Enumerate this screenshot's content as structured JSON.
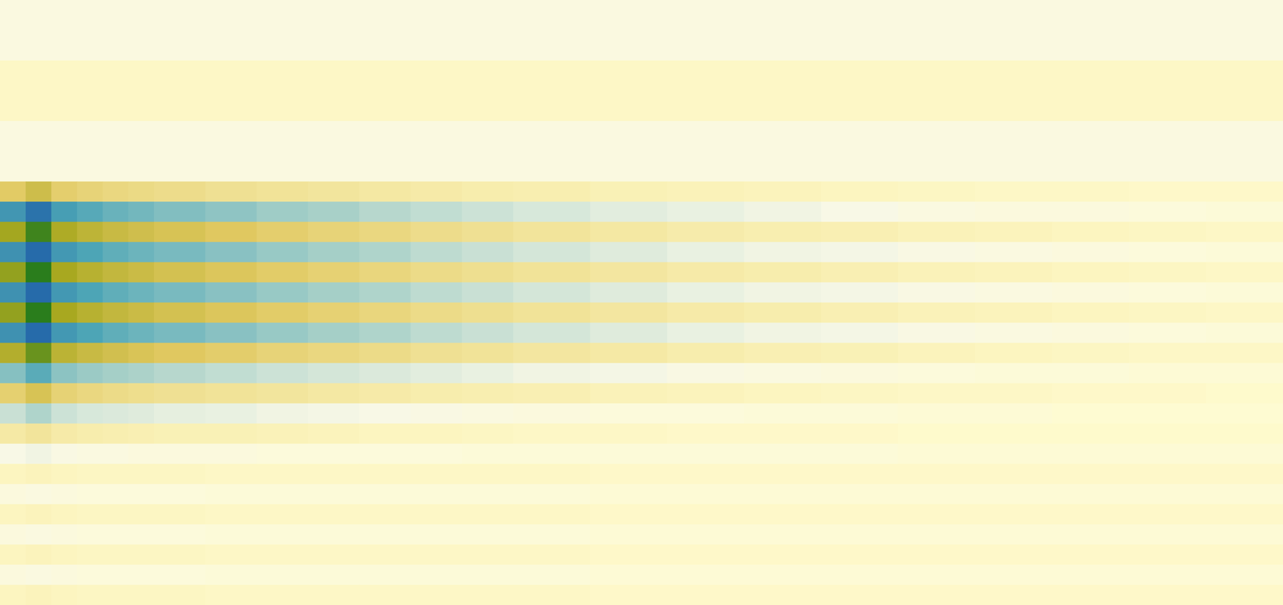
{
  "chart_data": {
    "type": "heatmap",
    "tick_labels": false,
    "xlim": [
      0,
      50
    ],
    "ylim": [
      0,
      30
    ],
    "zlim": [
      -1,
      1
    ],
    "x_edges": [
      0,
      1,
      2,
      3,
      4,
      5,
      6,
      8,
      10,
      12,
      14,
      16,
      18,
      20,
      23,
      26,
      29,
      32,
      35,
      38,
      41,
      44,
      47,
      50
    ],
    "cells": [
      [
        -0.06,
        -0.06,
        -0.06,
        -0.06,
        -0.06,
        -0.06,
        -0.06,
        -0.06,
        -0.06,
        -0.06,
        -0.06,
        -0.06,
        -0.06,
        -0.06,
        -0.06,
        -0.06,
        -0.06,
        -0.06,
        -0.06,
        -0.06,
        -0.06,
        -0.06,
        -0.06
      ],
      [
        -0.06,
        -0.06,
        -0.06,
        -0.06,
        -0.06,
        -0.06,
        -0.06,
        -0.06,
        -0.06,
        -0.06,
        -0.06,
        -0.06,
        -0.06,
        -0.06,
        -0.06,
        -0.06,
        -0.06,
        -0.06,
        -0.06,
        -0.06,
        -0.06,
        -0.06,
        -0.06
      ],
      [
        -0.06,
        -0.06,
        -0.06,
        -0.06,
        -0.06,
        -0.06,
        -0.06,
        -0.06,
        -0.06,
        -0.06,
        -0.06,
        -0.06,
        -0.06,
        -0.06,
        -0.06,
        -0.06,
        -0.06,
        -0.06,
        -0.06,
        -0.06,
        -0.06,
        -0.06,
        -0.06
      ],
      [
        0.03,
        0.03,
        0.03,
        0.03,
        0.03,
        0.03,
        0.03,
        0.03,
        0.03,
        0.03,
        0.03,
        0.03,
        0.03,
        0.03,
        0.03,
        0.03,
        0.03,
        0.03,
        0.03,
        0.03,
        0.03,
        0.03,
        0.03
      ],
      [
        0.03,
        0.03,
        0.03,
        0.03,
        0.03,
        0.03,
        0.03,
        0.03,
        0.03,
        0.03,
        0.03,
        0.03,
        0.03,
        0.03,
        0.03,
        0.03,
        0.03,
        0.03,
        0.03,
        0.03,
        0.03,
        0.03,
        0.03
      ],
      [
        0.03,
        0.03,
        0.03,
        0.03,
        0.03,
        0.03,
        0.03,
        0.03,
        0.03,
        0.03,
        0.03,
        0.03,
        0.03,
        0.03,
        0.03,
        0.03,
        0.03,
        0.03,
        0.03,
        0.03,
        0.03,
        0.03,
        0.03
      ],
      [
        -0.06,
        -0.06,
        -0.06,
        -0.06,
        -0.06,
        -0.06,
        -0.06,
        -0.06,
        -0.06,
        -0.06,
        -0.06,
        -0.06,
        -0.06,
        -0.06,
        -0.06,
        -0.06,
        -0.06,
        -0.06,
        -0.06,
        -0.06,
        -0.06,
        -0.06,
        -0.06
      ],
      [
        -0.06,
        -0.06,
        -0.06,
        -0.06,
        -0.06,
        -0.06,
        -0.06,
        -0.06,
        -0.06,
        -0.06,
        -0.06,
        -0.06,
        -0.06,
        -0.06,
        -0.06,
        -0.06,
        -0.06,
        -0.06,
        -0.06,
        -0.06,
        -0.06,
        -0.06,
        -0.06
      ],
      [
        -0.06,
        -0.06,
        -0.06,
        -0.06,
        -0.06,
        -0.06,
        -0.06,
        -0.06,
        -0.06,
        -0.06,
        -0.06,
        -0.06,
        -0.06,
        -0.06,
        -0.06,
        -0.06,
        -0.06,
        -0.06,
        -0.06,
        -0.06,
        -0.06,
        -0.06,
        -0.06
      ],
      [
        0.38,
        0.5,
        0.35,
        0.31,
        0.28,
        0.26,
        0.24,
        0.21,
        0.19,
        0.17,
        0.15,
        0.13,
        0.11,
        0.1,
        0.08,
        0.07,
        0.06,
        0.05,
        0.04,
        0.03,
        0.03,
        0.02,
        0.02
      ],
      [
        -0.68,
        -0.9,
        -0.63,
        -0.56,
        -0.5,
        -0.47,
        -0.42,
        -0.38,
        -0.33,
        -0.3,
        -0.26,
        -0.23,
        -0.2,
        -0.17,
        -0.14,
        -0.12,
        -0.1,
        -0.08,
        -0.06,
        -0.05,
        -0.05,
        -0.04,
        -0.03
      ],
      [
        0.71,
        0.95,
        0.67,
        0.59,
        0.53,
        0.49,
        0.45,
        0.4,
        0.35,
        0.31,
        0.28,
        0.24,
        0.21,
        0.18,
        0.15,
        0.12,
        0.1,
        0.09,
        0.07,
        0.06,
        0.05,
        0.04,
        0.03
      ],
      [
        -0.71,
        -0.95,
        -0.67,
        -0.59,
        -0.53,
        -0.49,
        -0.45,
        -0.4,
        -0.35,
        -0.31,
        -0.28,
        -0.24,
        -0.21,
        -0.18,
        -0.15,
        -0.12,
        -0.1,
        -0.09,
        -0.07,
        -0.06,
        -0.05,
        -0.04,
        -0.03
      ],
      [
        0.75,
        1,
        0.7,
        0.62,
        0.56,
        0.52,
        0.47,
        0.42,
        0.37,
        0.33,
        0.29,
        0.25,
        0.22,
        0.19,
        0.16,
        0.13,
        0.11,
        0.09,
        0.07,
        0.06,
        0.05,
        0.04,
        0.03
      ],
      [
        -0.71,
        -0.95,
        -0.67,
        -0.59,
        -0.53,
        -0.49,
        -0.45,
        -0.4,
        -0.35,
        -0.31,
        -0.28,
        -0.24,
        -0.21,
        -0.18,
        -0.15,
        -0.12,
        -0.1,
        -0.09,
        -0.07,
        -0.06,
        -0.05,
        -0.04,
        -0.03
      ],
      [
        0.75,
        1,
        0.7,
        0.62,
        0.56,
        0.52,
        0.47,
        0.42,
        0.37,
        0.33,
        0.29,
        0.25,
        0.22,
        0.19,
        0.16,
        0.13,
        0.11,
        0.09,
        0.07,
        0.06,
        0.05,
        0.04,
        0.03
      ],
      [
        -0.71,
        -0.95,
        -0.67,
        -0.59,
        -0.53,
        -0.49,
        -0.45,
        -0.4,
        -0.35,
        -0.31,
        -0.28,
        -0.24,
        -0.21,
        -0.18,
        -0.15,
        -0.12,
        -0.1,
        -0.09,
        -0.07,
        -0.06,
        -0.05,
        -0.04,
        -0.03
      ],
      [
        0.64,
        0.85,
        0.6,
        0.53,
        0.48,
        0.44,
        0.4,
        0.36,
        0.31,
        0.28,
        0.25,
        0.21,
        0.19,
        0.16,
        0.14,
        0.11,
        0.09,
        0.08,
        0.06,
        0.05,
        0.04,
        0.03,
        0.03
      ],
      [
        -0.41,
        -0.55,
        -0.39,
        -0.34,
        -0.31,
        -0.29,
        -0.26,
        -0.23,
        -0.2,
        -0.18,
        -0.16,
        -0.14,
        -0.12,
        -0.1,
        -0.09,
        -0.07,
        -0.06,
        -0.05,
        -0.04,
        -0.03,
        -0.03,
        -0.02,
        -0.02
      ],
      [
        0.34,
        0.45,
        0.32,
        0.28,
        0.25,
        0.23,
        0.21,
        0.19,
        0.17,
        0.15,
        0.13,
        0.11,
        0.1,
        0.09,
        0.07,
        0.06,
        0.05,
        0.04,
        0.03,
        0.03,
        0.02,
        0.02,
        0.01
      ],
      [
        -0.21,
        -0.28,
        -0.2,
        -0.17,
        -0.16,
        -0.15,
        -0.13,
        -0.12,
        -0.1,
        -0.09,
        -0.08,
        -0.07,
        -0.06,
        -0.05,
        -0.04,
        -0.04,
        -0.03,
        -0.03,
        -0.02,
        -0.02,
        -0.01,
        -0.01,
        -0.01
      ],
      [
        0.14,
        0.18,
        0.13,
        0.11,
        0.1,
        0.09,
        0.08,
        0.08,
        0.07,
        0.06,
        0.05,
        0.05,
        0.04,
        0.03,
        0.03,
        0.02,
        0.02,
        0.02,
        0.01,
        0.01,
        0.01,
        0.01,
        0.01
      ],
      [
        -0.08,
        -0.1,
        -0.07,
        -0.06,
        -0.06,
        -0.05,
        -0.05,
        -0.05,
        -0.04,
        -0.04,
        -0.04,
        -0.04,
        -0.03,
        -0.03,
        -0.03,
        -0.03,
        -0.03,
        -0.03,
        -0.02,
        -0.02,
        -0.02,
        -0.02,
        -0.02
      ],
      [
        0.05,
        0.06,
        0.05,
        0.04,
        0.04,
        0.04,
        0.04,
        0.03,
        0.03,
        0.03,
        0.03,
        0.03,
        0.03,
        0.03,
        0.02,
        0.02,
        0.02,
        0.02,
        0.02,
        0.02,
        0.02,
        0.02,
        0.02
      ],
      [
        -0.05,
        -0.06,
        -0.05,
        -0.04,
        -0.04,
        -0.04,
        -0.04,
        -0.03,
        -0.03,
        -0.03,
        -0.03,
        -0.03,
        -0.03,
        -0.03,
        -0.02,
        -0.02,
        -0.02,
        -0.02,
        -0.02,
        -0.02,
        -0.02,
        -0.02,
        -0.02
      ],
      [
        0.05,
        0.06,
        0.05,
        0.04,
        0.04,
        0.04,
        0.04,
        0.03,
        0.03,
        0.03,
        0.03,
        0.03,
        0.03,
        0.03,
        0.02,
        0.02,
        0.02,
        0.02,
        0.02,
        0.02,
        0.02,
        0.02,
        0.02
      ],
      [
        -0.05,
        -0.06,
        -0.05,
        -0.04,
        -0.04,
        -0.04,
        -0.04,
        -0.03,
        -0.03,
        -0.03,
        -0.03,
        -0.03,
        -0.03,
        -0.03,
        -0.02,
        -0.02,
        -0.02,
        -0.02,
        -0.02,
        -0.02,
        -0.02,
        -0.02,
        -0.02
      ],
      [
        0.05,
        0.06,
        0.05,
        0.04,
        0.04,
        0.04,
        0.04,
        0.03,
        0.03,
        0.03,
        0.03,
        0.03,
        0.03,
        0.03,
        0.02,
        0.02,
        0.02,
        0.02,
        0.02,
        0.02,
        0.02,
        0.02,
        0.02
      ],
      [
        -0.05,
        -0.06,
        -0.05,
        -0.04,
        -0.04,
        -0.04,
        -0.04,
        -0.03,
        -0.03,
        -0.03,
        -0.03,
        -0.03,
        -0.03,
        -0.03,
        -0.02,
        -0.02,
        -0.02,
        -0.02,
        -0.02,
        -0.02,
        -0.02,
        -0.02,
        -0.02
      ],
      [
        0.05,
        0.06,
        0.05,
        0.04,
        0.04,
        0.04,
        0.04,
        0.03,
        0.03,
        0.03,
        0.03,
        0.03,
        0.03,
        0.03,
        0.02,
        0.02,
        0.02,
        0.02,
        0.02,
        0.02,
        0.02,
        0.02,
        0.02
      ]
    ]
  }
}
